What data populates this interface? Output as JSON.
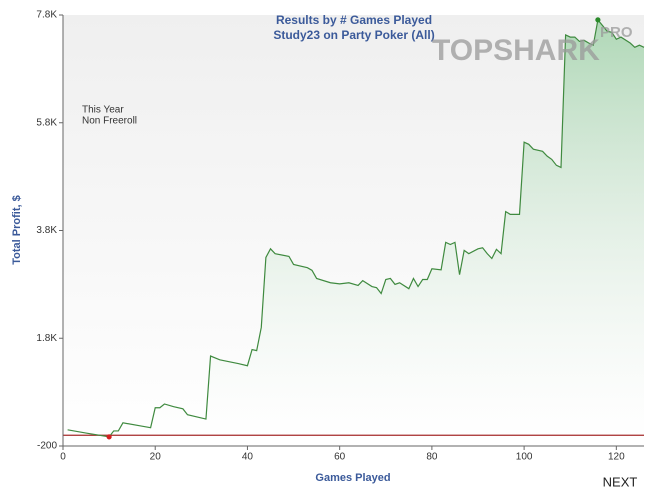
{
  "chart_data": {
    "type": "area",
    "title": [
      "Results by # Games Played",
      "Study23 on Party Poker (All)"
    ],
    "notes": [
      "This Year",
      "Non Freeroll"
    ],
    "logo": "TOPSHARK",
    "logo_badge": "PRO",
    "x_label": "Games Played",
    "y_label": "Total Profit, $",
    "next_button": "NEXT",
    "x": [
      1,
      5,
      10,
      11,
      12,
      13,
      17,
      19,
      20,
      21,
      22,
      24,
      26,
      27,
      31,
      32,
      34,
      38,
      40,
      41,
      42,
      43,
      44,
      45,
      46,
      49,
      50,
      53,
      54,
      55,
      58,
      60,
      62,
      64,
      65,
      67,
      68,
      69,
      70,
      71,
      72,
      73,
      75,
      76,
      77,
      78,
      79,
      80,
      82,
      83,
      84,
      85,
      86,
      87,
      88,
      90,
      91,
      92,
      93,
      94,
      95,
      96,
      97,
      99,
      100,
      101,
      102,
      104,
      105,
      106,
      107,
      108,
      109,
      110,
      111,
      112,
      113,
      114,
      115,
      116,
      118,
      119,
      120,
      121,
      123,
      124,
      125,
      126
    ],
    "values": [
      100,
      40,
      -30,
      80,
      80,
      230,
      170,
      140,
      510,
      510,
      580,
      530,
      490,
      380,
      300,
      1470,
      1400,
      1330,
      1290,
      1590,
      1570,
      2000,
      3300,
      3460,
      3370,
      3320,
      3170,
      3110,
      3060,
      2910,
      2830,
      2810,
      2830,
      2780,
      2870,
      2760,
      2740,
      2630,
      2890,
      2910,
      2800,
      2830,
      2720,
      2910,
      2760,
      2890,
      2890,
      3090,
      3070,
      3580,
      3540,
      3580,
      2980,
      3430,
      3370,
      3460,
      3480,
      3370,
      3280,
      3450,
      3370,
      4150,
      4100,
      4100,
      5440,
      5400,
      5310,
      5270,
      5180,
      5120,
      5010,
      4970,
      7430,
      7390,
      7390,
      7310,
      7330,
      7280,
      7240,
      7710,
      7500,
      7480,
      7350,
      7390,
      7280,
      7200,
      7240,
      7200
    ],
    "color": "#3f8a3f",
    "min_index": 2,
    "min_color": "#d42020",
    "max_index": 79,
    "max_color": "#2a8a2a",
    "baseline": 0,
    "baseline_color": "#a52a2a",
    "xlim": [
      0,
      126
    ],
    "xticks": [
      0,
      20,
      40,
      60,
      80,
      100,
      120
    ],
    "ylim": [
      -200,
      7800
    ],
    "yticks": [
      -200,
      {
        "value": 1800,
        "label": "1.8K"
      },
      {
        "value": 3800,
        "label": "3.8K"
      },
      {
        "value": 5800,
        "label": "5.8K"
      },
      {
        "value": 7800,
        "label": "7.8K"
      }
    ]
  }
}
